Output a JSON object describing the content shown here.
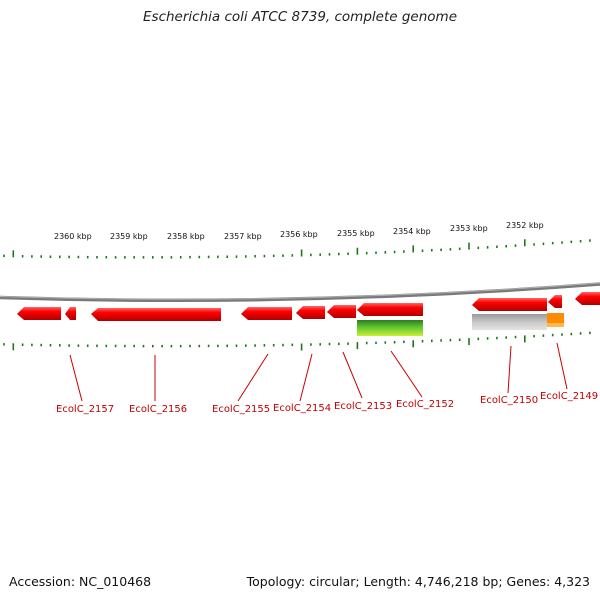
{
  "title": "Escherichia coli ATCC 8739, complete genome",
  "accession": "Accession: NC_010468",
  "summary": "Topology: circular; Length: 4,746,218 bp; Genes: 4,323",
  "scale_labels": [
    "2360 kbp",
    "2359 kbp",
    "2358 kbp",
    "2357 kbp",
    "2356 kbp",
    "2355 kbp",
    "2354 kbp",
    "2353 kbp",
    "2352 kbp"
  ],
  "genes": [
    "EcolC_2157",
    "EcolC_2156",
    "EcolC_2155",
    "EcolC_2154",
    "EcolC_2153",
    "EcolC_2152",
    "EcolC_2150",
    "EcolC_2149"
  ],
  "colors": {
    "gene": "#ff0000",
    "tick": "#1a7a1a",
    "backbone": "#808080",
    "label": "#c00000",
    "green_feature": "#33aa22",
    "grey_feature": "#b8b8b8",
    "orange_feature": "#ff8800"
  }
}
